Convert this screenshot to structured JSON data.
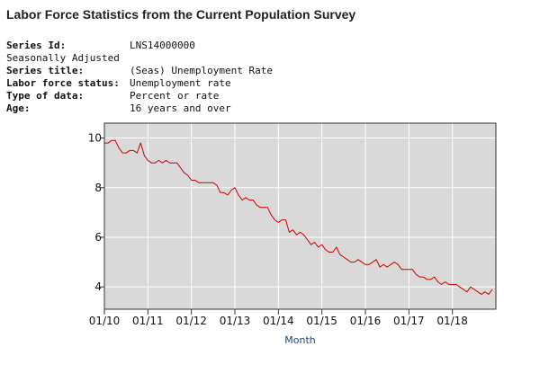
{
  "page": {
    "title": "Labor Force Statistics from the Current Population Survey",
    "meta": {
      "series_id_label": "Series Id:",
      "series_id": "LNS14000000",
      "adjustment": "Seasonally Adjusted",
      "series_title_label": "Series title:",
      "series_title": "(Seas) Unemployment Rate",
      "lf_status_label": "Labor force status:",
      "lf_status": "Unemployment rate",
      "data_type_label": "Type of data:",
      "data_type": "Percent or rate",
      "age_label": "Age:",
      "age": "16 years and over"
    }
  },
  "colors": {
    "plot_background": "#d9d9d9",
    "gridline": "#ffffff",
    "series_line": "#cc0000"
  },
  "chart_data": {
    "type": "line",
    "title": "",
    "xlabel": "Month",
    "ylabel": "",
    "x_tick_labels": [
      "01/10",
      "01/11",
      "01/12",
      "01/13",
      "01/14",
      "01/15",
      "01/16",
      "01/17",
      "01/18"
    ],
    "y_ticks": [
      4,
      6,
      8,
      10
    ],
    "ylim": [
      3.1,
      10.6
    ],
    "x_range": [
      "2010-01",
      "2018-12"
    ],
    "grid": true,
    "series": [
      {
        "name": "",
        "x_start": "2010-01",
        "frequency": "monthly",
        "values": [
          9.8,
          9.8,
          9.9,
          9.9,
          9.6,
          9.4,
          9.4,
          9.5,
          9.5,
          9.4,
          9.8,
          9.3,
          9.1,
          9.0,
          9.0,
          9.1,
          9.0,
          9.1,
          9.0,
          9.0,
          9.0,
          8.8,
          8.6,
          8.5,
          8.3,
          8.3,
          8.2,
          8.2,
          8.2,
          8.2,
          8.2,
          8.1,
          7.8,
          7.8,
          7.7,
          7.9,
          8.0,
          7.7,
          7.5,
          7.6,
          7.5,
          7.5,
          7.3,
          7.2,
          7.2,
          7.2,
          6.9,
          6.7,
          6.6,
          6.7,
          6.7,
          6.2,
          6.3,
          6.1,
          6.2,
          6.1,
          5.9,
          5.7,
          5.8,
          5.6,
          5.7,
          5.5,
          5.4,
          5.4,
          5.6,
          5.3,
          5.2,
          5.1,
          5.0,
          5.0,
          5.1,
          5.0,
          4.9,
          4.9,
          5.0,
          5.1,
          4.8,
          4.9,
          4.8,
          4.9,
          5.0,
          4.9,
          4.7,
          4.7,
          4.7,
          4.7,
          4.5,
          4.4,
          4.4,
          4.3,
          4.3,
          4.4,
          4.2,
          4.1,
          4.2,
          4.1,
          4.1,
          4.1,
          4.0,
          3.9,
          3.8,
          4.0,
          3.9,
          3.8,
          3.7,
          3.8,
          3.7,
          3.9
        ]
      }
    ]
  }
}
